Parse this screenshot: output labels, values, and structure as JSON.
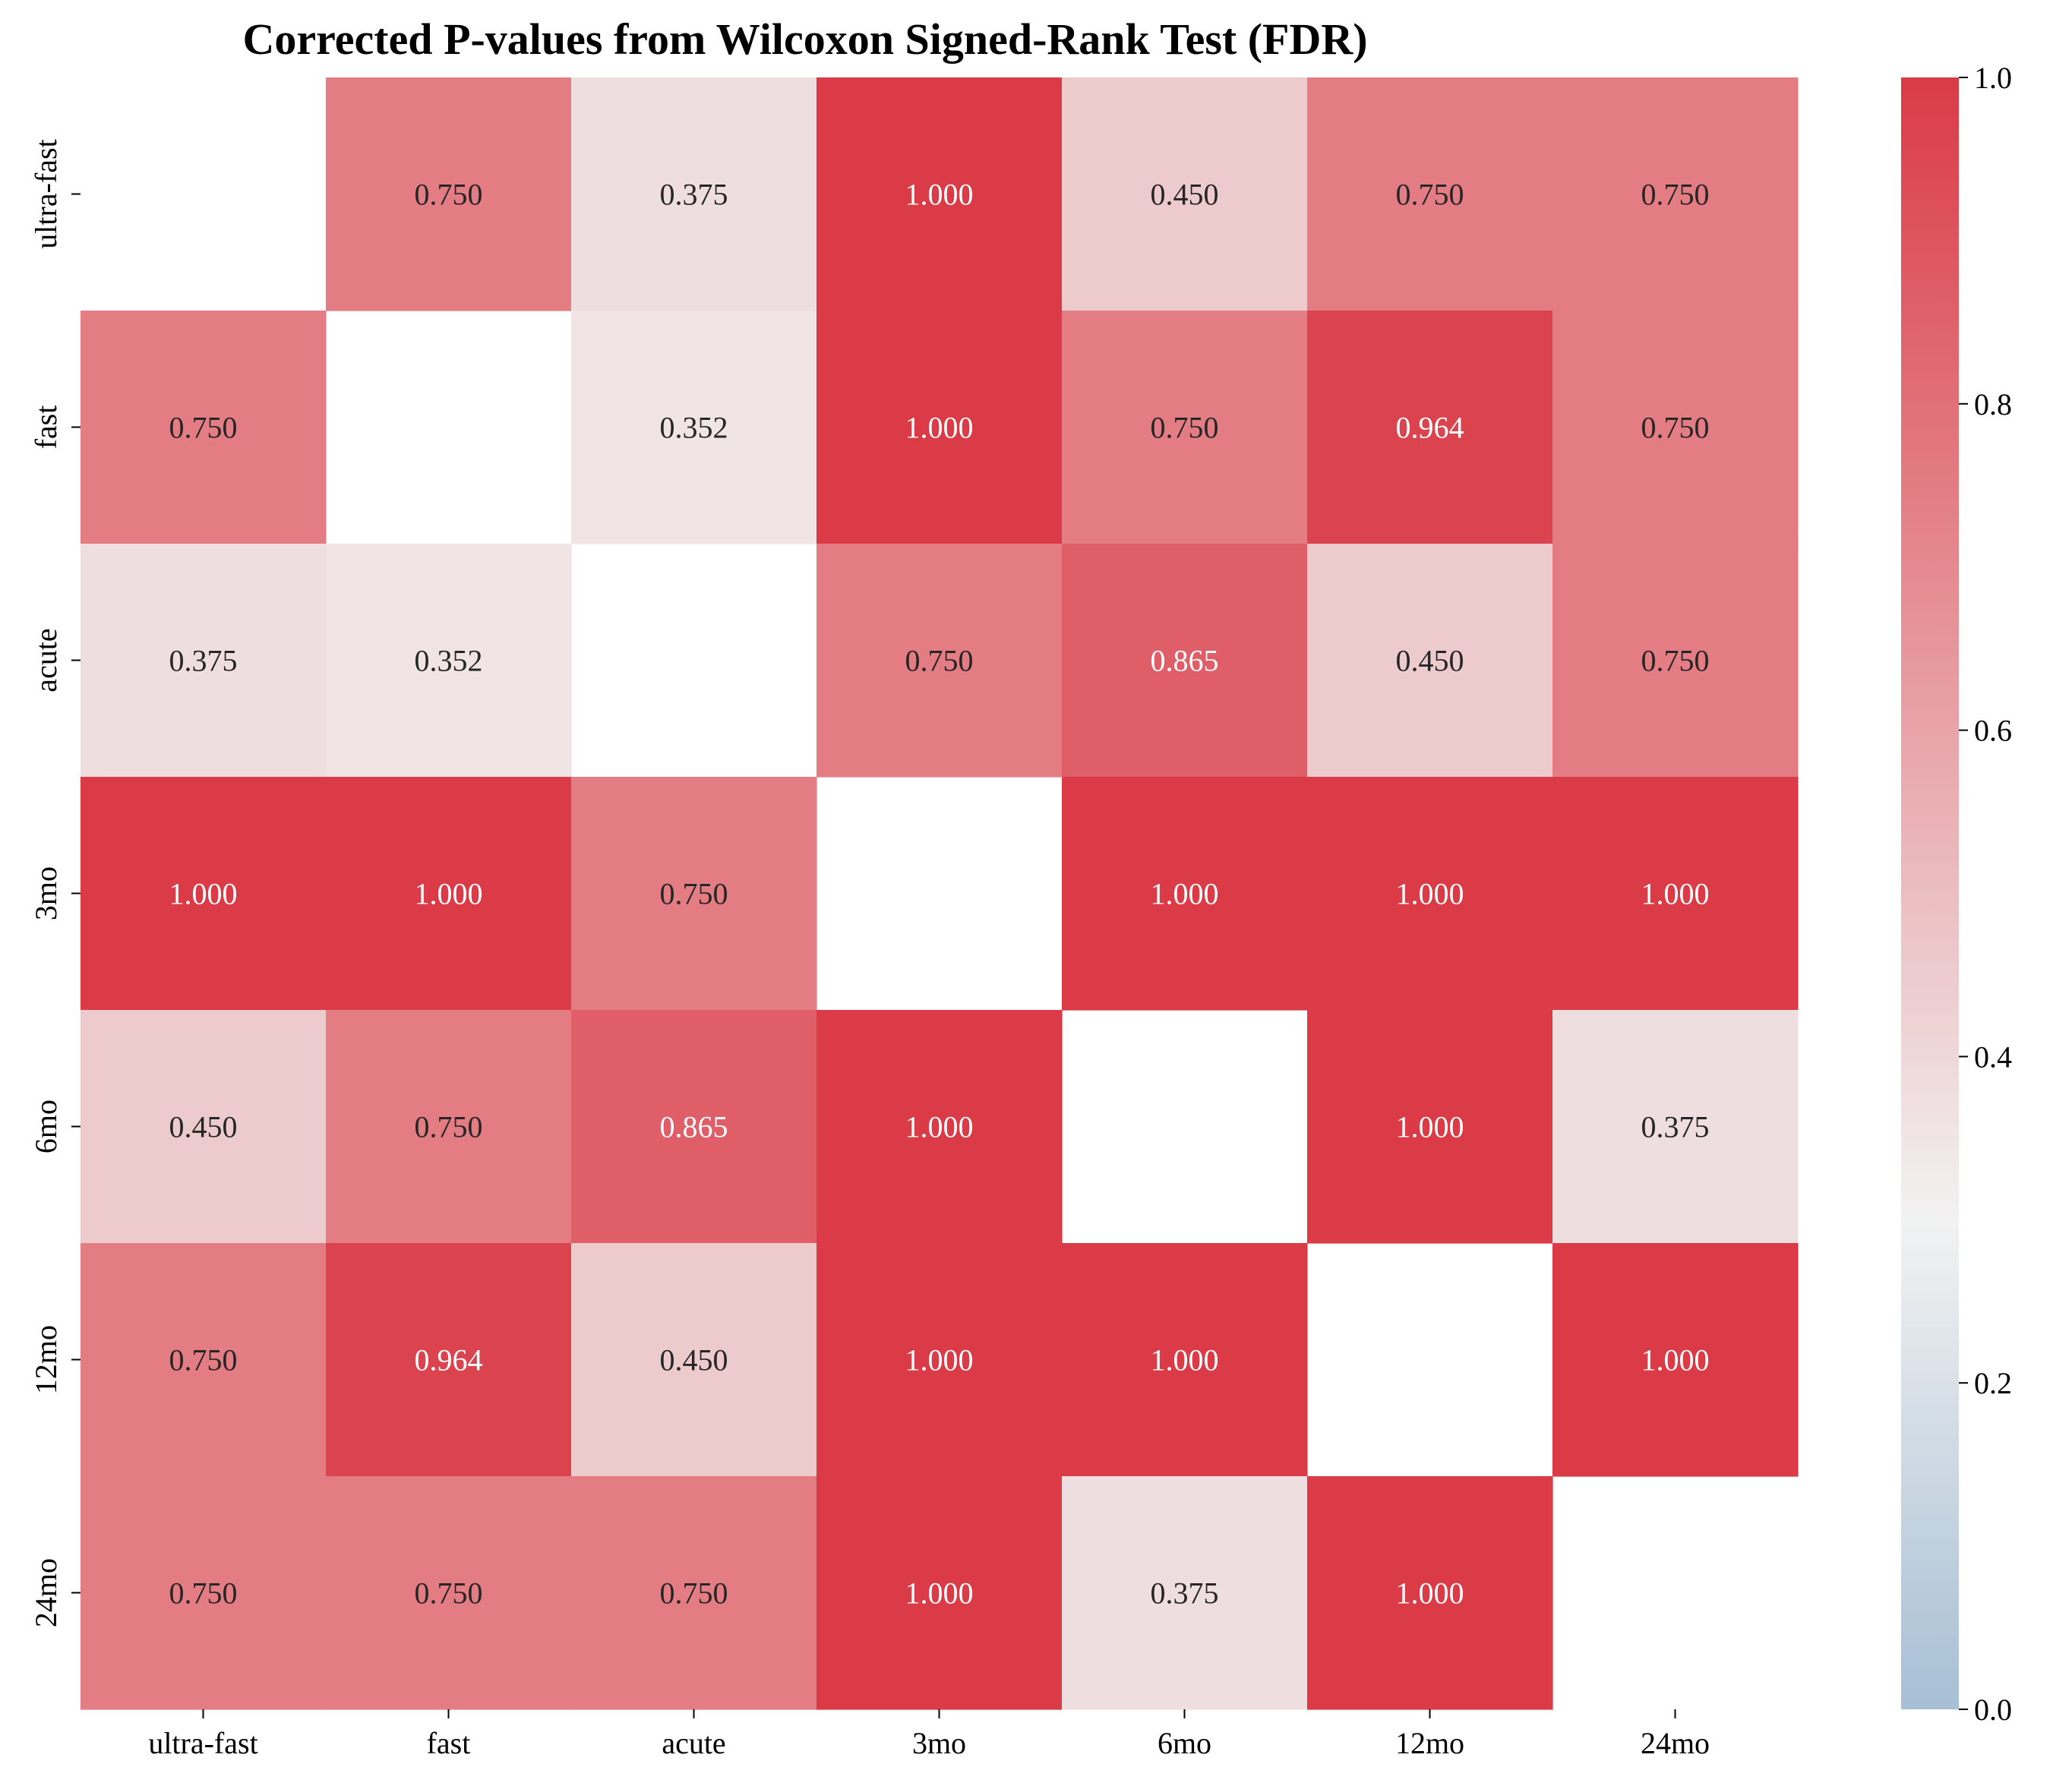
{
  "chart_data": {
    "type": "heatmap",
    "title": "Corrected P-values from Wilcoxon Signed-Rank Test (FDR)",
    "xlabel": "",
    "ylabel": "",
    "x_categories": [
      "ultra-fast",
      "fast",
      "acute",
      "3mo",
      "6mo",
      "12mo",
      "24mo"
    ],
    "y_categories": [
      "ultra-fast",
      "fast",
      "acute",
      "3mo",
      "6mo",
      "12mo",
      "24mo"
    ],
    "values": [
      [
        null,
        0.75,
        0.375,
        1.0,
        0.45,
        0.75,
        0.75
      ],
      [
        0.75,
        null,
        0.352,
        1.0,
        0.75,
        0.964,
        0.75
      ],
      [
        0.375,
        0.352,
        null,
        0.75,
        0.865,
        0.45,
        0.75
      ],
      [
        1.0,
        1.0,
        0.75,
        null,
        1.0,
        1.0,
        1.0
      ],
      [
        0.45,
        0.75,
        0.865,
        1.0,
        null,
        1.0,
        0.375
      ],
      [
        0.75,
        0.964,
        0.45,
        1.0,
        1.0,
        null,
        1.0
      ],
      [
        0.75,
        0.75,
        0.75,
        1.0,
        0.375,
        1.0,
        null
      ]
    ],
    "value_format": "3 decimals",
    "colorbar": {
      "range": [
        0,
        1
      ],
      "ticks": [
        "0.0",
        "0.2",
        "0.4",
        "0.6",
        "0.8",
        "1.0"
      ],
      "colors": {
        "low": "#a7bfd4",
        "mid": "#f2f2f2",
        "high": "#da3b46"
      }
    },
    "grid": false,
    "legend": "colorbar right"
  }
}
